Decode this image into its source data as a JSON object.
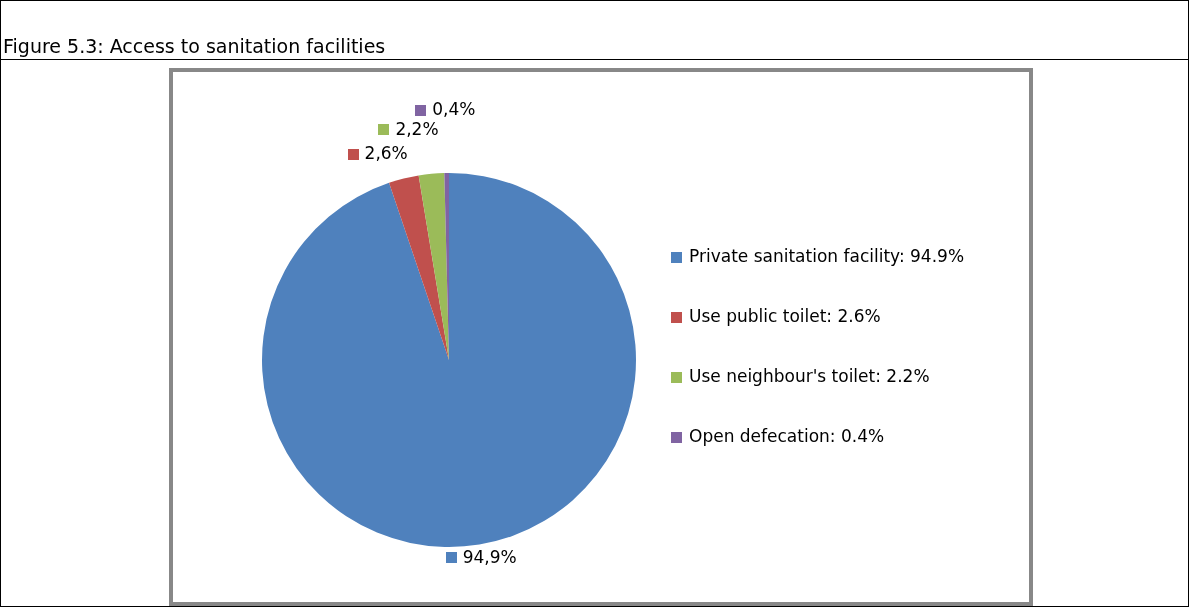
{
  "chart_data": {
    "type": "pie",
    "title": "Figure 5.3: Access to sanitation facilities",
    "categories": [
      "Private sanitation facility: 94.9%",
      "Use public toilet: 2.6%",
      "Use neighbour's toilet: 2.2%",
      "Open defecation: 0.4%"
    ],
    "values": [
      94.9,
      2.6,
      2.2,
      0.4
    ],
    "colors": [
      "#4f81bd",
      "#c0504d",
      "#9bbb59",
      "#8064a2"
    ],
    "value_labels": [
      "94,9%",
      "2,6%",
      "2,2%",
      "0,4%"
    ],
    "legend": "right"
  }
}
